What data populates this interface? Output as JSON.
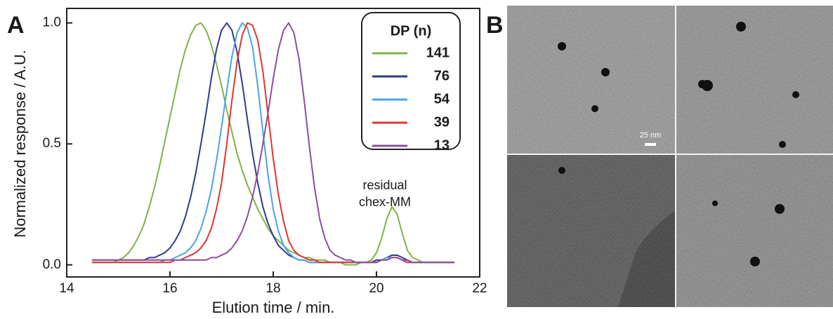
{
  "chart_data": {
    "type": "line",
    "panel_label": "A",
    "x_label": "Elution time / min.",
    "y_label": "Normalized response / A.U.",
    "legend_title": "DP (n)",
    "annotation": [
      "residual",
      "chex-MM"
    ],
    "xlim": [
      14,
      22
    ],
    "xticks": [
      14,
      16,
      18,
      20,
      22
    ],
    "ylim": [
      -0.05,
      1.06
    ],
    "yticks": [
      {
        "value": 0,
        "label": "0.0"
      },
      {
        "value": 0.5,
        "label": "0.5"
      },
      {
        "value": 1,
        "label": "1.0"
      }
    ],
    "x": [
      14.5,
      14.6,
      14.7,
      14.8,
      14.9,
      15.0,
      15.1,
      15.2,
      15.3,
      15.4,
      15.5,
      15.6,
      15.7,
      15.8,
      15.9,
      16.0,
      16.1,
      16.2,
      16.3,
      16.4,
      16.5,
      16.6,
      16.7,
      16.8,
      16.9,
      17.0,
      17.1,
      17.2,
      17.3,
      17.4,
      17.5,
      17.6,
      17.7,
      17.8,
      17.9,
      18.0,
      18.1,
      18.2,
      18.3,
      18.4,
      18.5,
      18.6,
      18.7,
      18.8,
      18.9,
      19.0,
      19.1,
      19.2,
      19.3,
      19.4,
      19.5,
      19.6,
      19.7,
      19.8,
      19.9,
      20.0,
      20.1,
      20.2,
      20.3,
      20.4,
      20.5,
      20.6,
      20.7,
      20.8,
      20.9,
      21.0,
      21.1,
      21.2,
      21.3,
      21.4,
      21.5
    ],
    "series": [
      {
        "name": "141",
        "color": "#7db544",
        "values": [
          0.01,
          0.01,
          0.01,
          0.01,
          0.01,
          0.02,
          0.03,
          0.05,
          0.08,
          0.12,
          0.17,
          0.24,
          0.32,
          0.41,
          0.51,
          0.61,
          0.71,
          0.81,
          0.89,
          0.95,
          0.99,
          1.0,
          0.97,
          0.91,
          0.83,
          0.74,
          0.64,
          0.55,
          0.46,
          0.39,
          0.33,
          0.28,
          0.23,
          0.19,
          0.15,
          0.12,
          0.1,
          0.08,
          0.06,
          0.05,
          0.04,
          0.03,
          0.03,
          0.02,
          0.02,
          0.02,
          0.01,
          0.01,
          0.01,
          0,
          0,
          0,
          0.01,
          0.01,
          0.02,
          0.05,
          0.11,
          0.19,
          0.24,
          0.21,
          0.13,
          0.06,
          0.03,
          0.02,
          0.01,
          0.01,
          0.01,
          0.01,
          0.01,
          0.01,
          0.01
        ]
      },
      {
        "name": "76",
        "color": "#2e3a8c",
        "values": [
          0.02,
          0.02,
          0.02,
          0.02,
          0.02,
          0.02,
          0.02,
          0.02,
          0.02,
          0.02,
          0.02,
          0.03,
          0.03,
          0.04,
          0.05,
          0.07,
          0.1,
          0.14,
          0.2,
          0.28,
          0.38,
          0.5,
          0.63,
          0.77,
          0.89,
          0.97,
          1.0,
          0.97,
          0.88,
          0.75,
          0.6,
          0.46,
          0.34,
          0.24,
          0.17,
          0.12,
          0.08,
          0.06,
          0.04,
          0.03,
          0.02,
          0.02,
          0.01,
          0.01,
          0.01,
          0.01,
          0.01,
          0.01,
          0.01,
          0.01,
          0.01,
          0.01,
          0.01,
          0.01,
          0.01,
          0.02,
          0.02,
          0.03,
          0.04,
          0.04,
          0.03,
          0.02,
          0.01,
          0.01,
          0.01,
          0.01,
          0.01,
          0.01,
          0.01,
          0.01,
          0.01
        ]
      },
      {
        "name": "54",
        "color": "#4da3e6",
        "values": [
          0.01,
          0.01,
          0.01,
          0.01,
          0.01,
          0.01,
          0.01,
          0.01,
          0.01,
          0.01,
          0.01,
          0.01,
          0.01,
          0.01,
          0.02,
          0.02,
          0.03,
          0.04,
          0.05,
          0.07,
          0.1,
          0.15,
          0.22,
          0.31,
          0.43,
          0.57,
          0.72,
          0.86,
          0.96,
          1.0,
          0.98,
          0.9,
          0.74,
          0.55,
          0.37,
          0.23,
          0.14,
          0.08,
          0.05,
          0.03,
          0.02,
          0.02,
          0.01,
          0.01,
          0.01,
          0.01,
          0.01,
          0.01,
          0.01,
          0.01,
          0.01,
          0.01,
          0.01,
          0.01,
          0.01,
          0.01,
          0.02,
          0.03,
          0.03,
          0.03,
          0.02,
          0.01,
          0.01,
          0.01,
          0.01,
          0.01,
          0.01,
          0.01,
          0.01,
          0.01,
          0.01
        ]
      },
      {
        "name": "39",
        "color": "#e0342f",
        "values": [
          0.01,
          0.01,
          0.01,
          0.01,
          0.01,
          0.01,
          0.01,
          0.01,
          0.01,
          0.01,
          0.01,
          0.01,
          0.01,
          0.01,
          0.01,
          0.01,
          0.02,
          0.02,
          0.03,
          0.04,
          0.05,
          0.07,
          0.1,
          0.15,
          0.23,
          0.34,
          0.5,
          0.68,
          0.84,
          0.95,
          1.0,
          0.99,
          0.93,
          0.8,
          0.62,
          0.44,
          0.29,
          0.18,
          0.1,
          0.06,
          0.04,
          0.03,
          0.02,
          0.02,
          0.01,
          0.01,
          0.01,
          0.01,
          0.01,
          0.01,
          0.01,
          0.01,
          0.01,
          0.01,
          0.01,
          0.01,
          0.02,
          0.02,
          0.03,
          0.03,
          0.02,
          0.01,
          0.01,
          0.01,
          0.01,
          0.01,
          0.01,
          0.01,
          0.01,
          0.01,
          0.01
        ]
      },
      {
        "name": "13",
        "color": "#8a4f9e",
        "values": [
          0.02,
          0.02,
          0.02,
          0.02,
          0.02,
          0.02,
          0.02,
          0.02,
          0.02,
          0.02,
          0.02,
          0.02,
          0.02,
          0.02,
          0.02,
          0.02,
          0.02,
          0.02,
          0.02,
          0.02,
          0.02,
          0.02,
          0.02,
          0.03,
          0.03,
          0.04,
          0.05,
          0.07,
          0.1,
          0.14,
          0.2,
          0.28,
          0.38,
          0.5,
          0.63,
          0.77,
          0.89,
          0.97,
          1.0,
          0.96,
          0.85,
          0.68,
          0.49,
          0.32,
          0.19,
          0.11,
          0.06,
          0.04,
          0.03,
          0.02,
          0.02,
          0.01,
          0.01,
          0.01,
          0.01,
          0.01,
          0.02,
          0.02,
          0.03,
          0.03,
          0.02,
          0.02,
          0.01,
          0.01,
          0.01,
          0.01,
          0.01,
          0.01,
          0.01,
          0.01,
          0.01
        ]
      }
    ]
  },
  "image_panel": {
    "label": "B",
    "scale_bar": "25 nm"
  }
}
